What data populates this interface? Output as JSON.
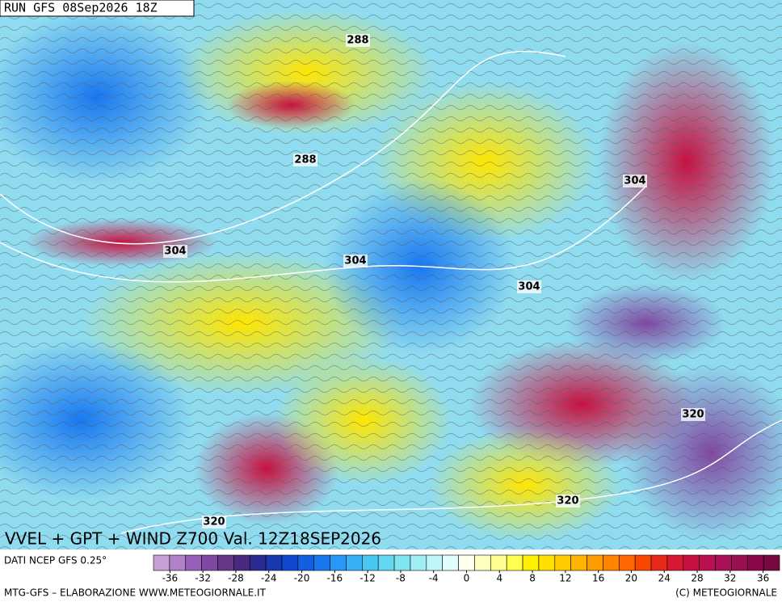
{
  "run_label": "RUN GFS 08Sep2026 18Z",
  "map_title": "VVEL + GPT + WIND Z700 Val. 12Z18SEP2026",
  "contour_labels": [
    288,
    288,
    304,
    304,
    304,
    304,
    320,
    320,
    320
  ],
  "colorbar": {
    "caption": "DATI NCEP GFS 0.25°",
    "range": [
      -38,
      38
    ],
    "colors": [
      "#c8a0d8",
      "#b080c8",
      "#9860b8",
      "#8048a0",
      "#683888",
      "#4a2a80",
      "#2a2a90",
      "#1838b0",
      "#1048d0",
      "#1060e0",
      "#1878f0",
      "#2898f8",
      "#38b0f8",
      "#48c8f0",
      "#60d8f0",
      "#80e4f0",
      "#a0eef4",
      "#c0f6f8",
      "#e0fcfc",
      "#fffff0",
      "#ffffc0",
      "#ffff90",
      "#ffff50",
      "#fff000",
      "#ffe000",
      "#ffcc00",
      "#ffb400",
      "#ff9c00",
      "#ff8400",
      "#ff6800",
      "#f84800",
      "#e82818",
      "#d81830",
      "#c81040",
      "#b81050",
      "#a81058",
      "#981050",
      "#880848",
      "#780840"
    ],
    "ticks": [
      -36,
      -32,
      -28,
      -24,
      -20,
      -16,
      -12,
      -8,
      -4,
      0,
      4,
      8,
      12,
      16,
      20,
      24,
      28,
      32,
      36
    ]
  },
  "footer_left": "MTG-GFS – ELABORAZIONE WWW.METEOGIORNALE.IT",
  "footer_right": "(C) METEOGIORNALE"
}
